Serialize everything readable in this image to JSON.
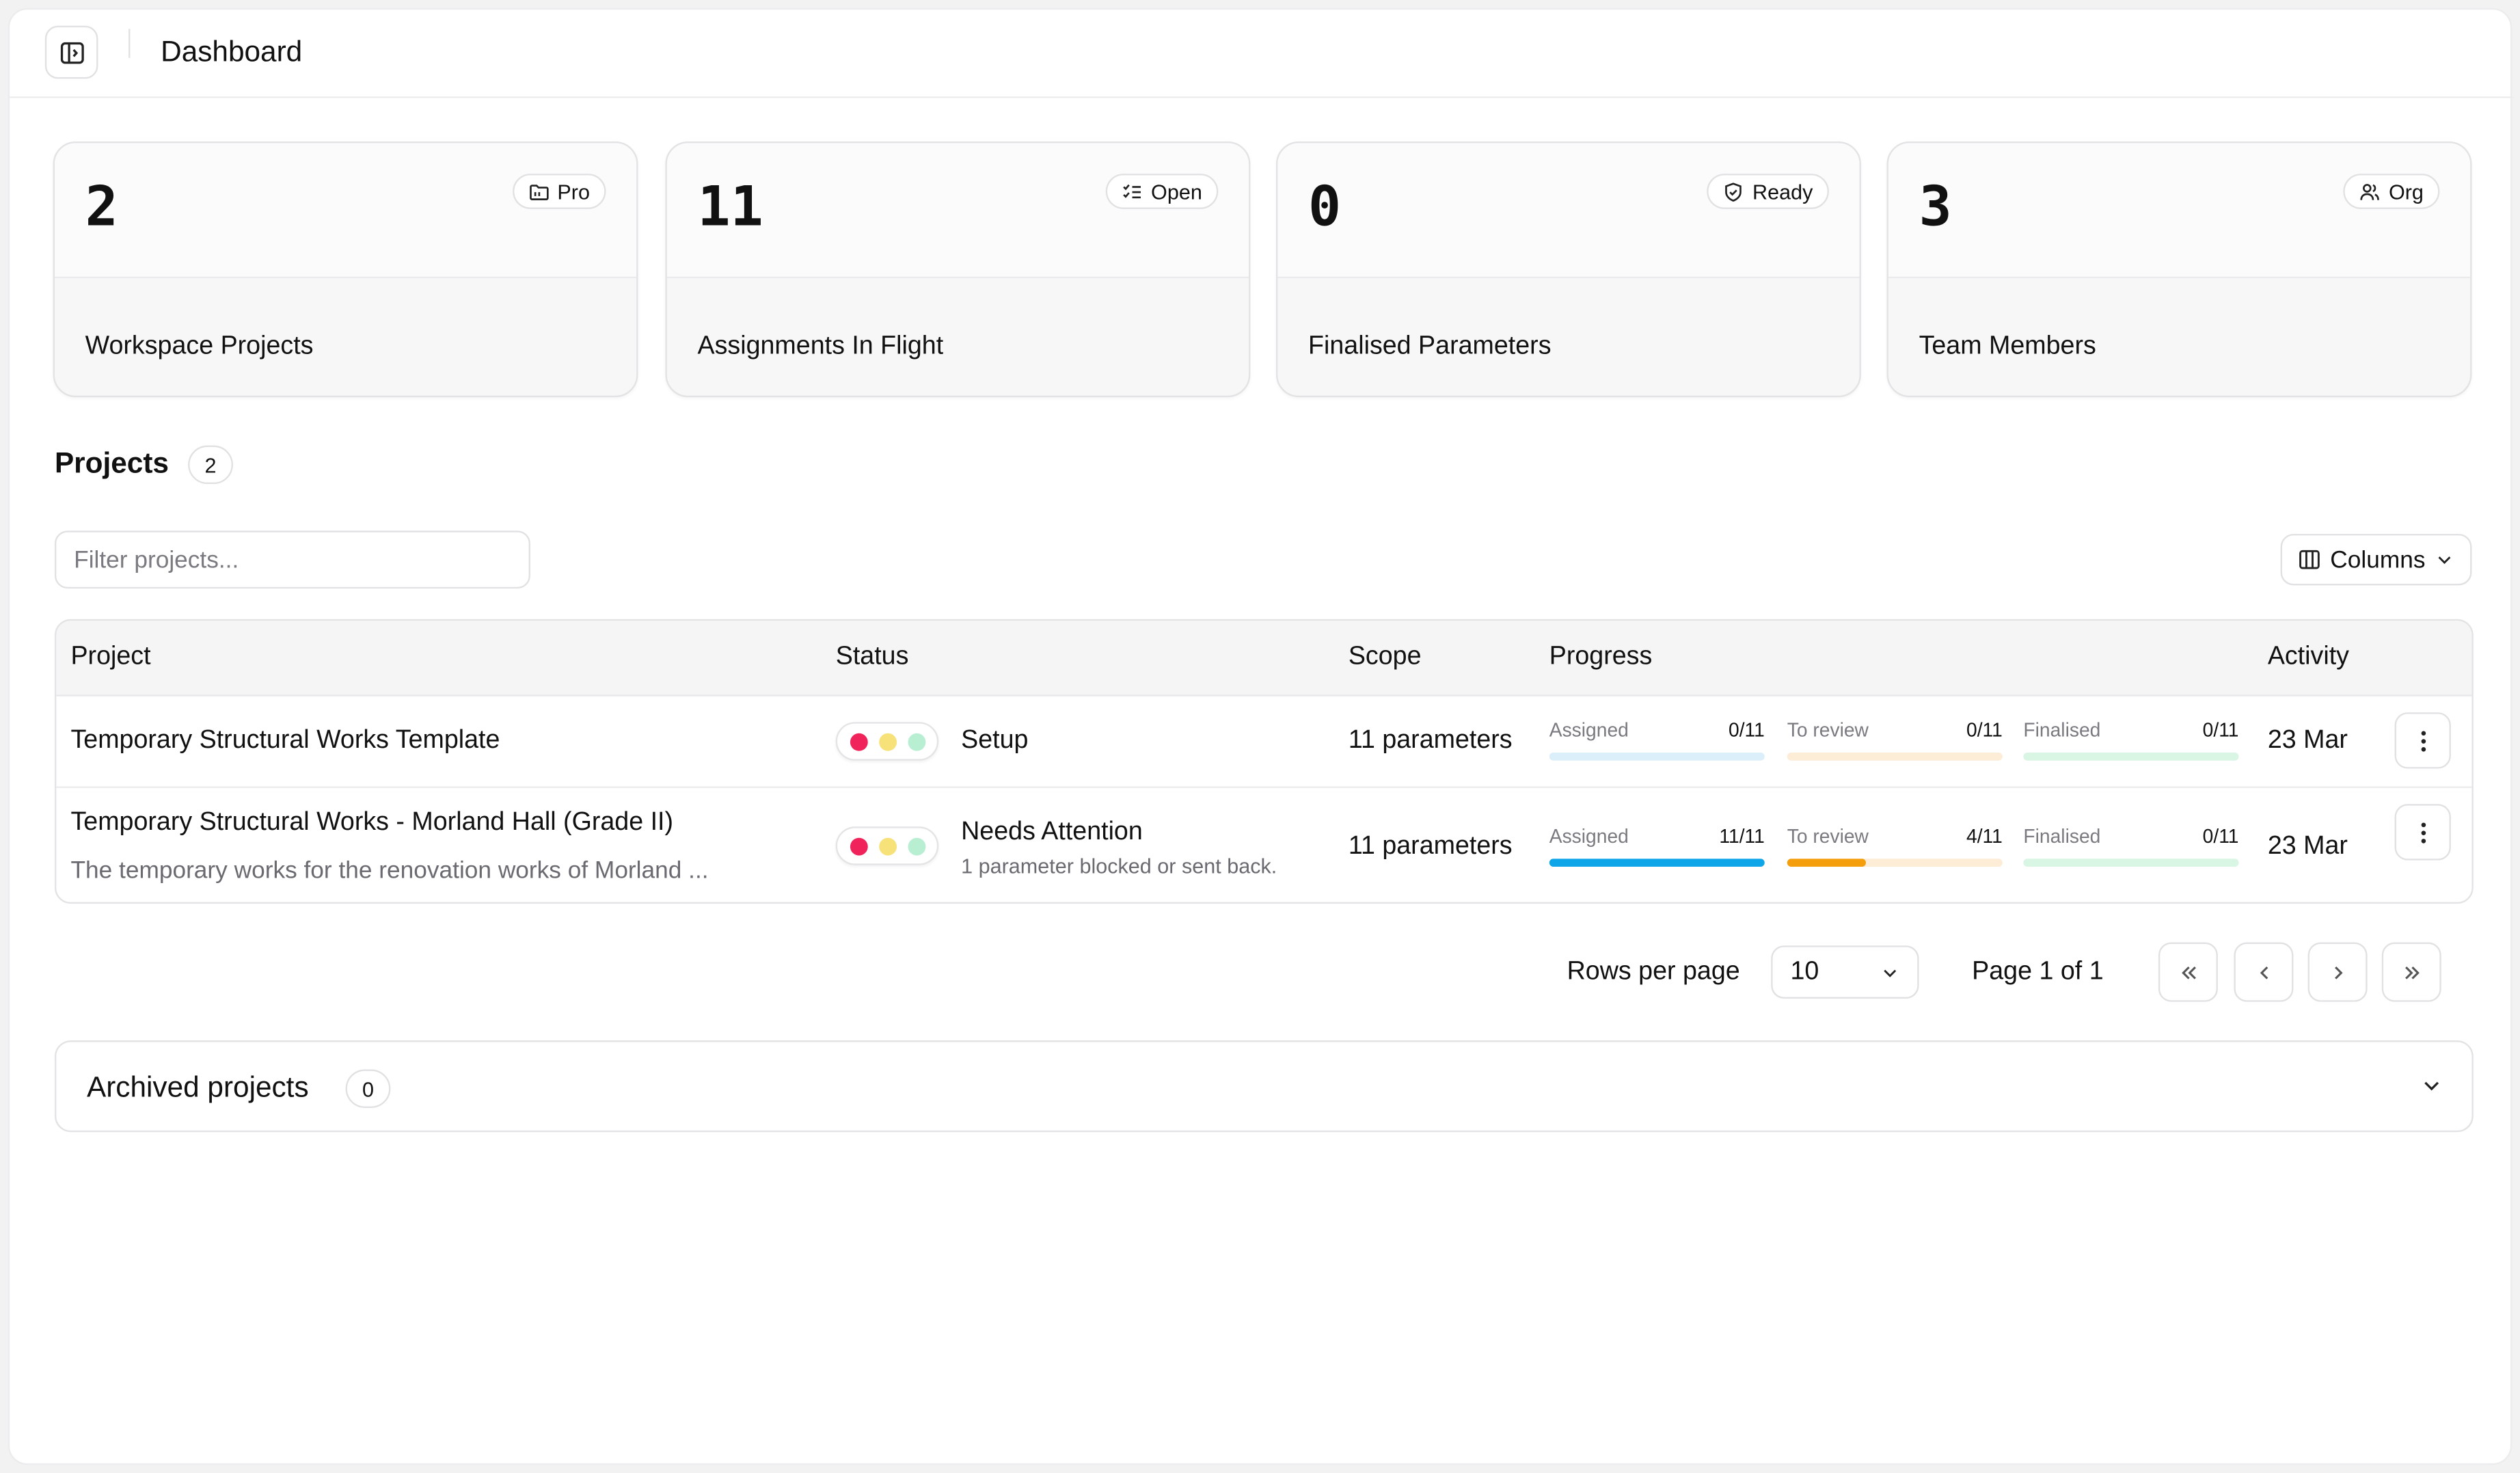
{
  "header": {
    "title": "Dashboard",
    "toggle_icon": "sidebar-toggle-icon"
  },
  "kpis": [
    {
      "value": "2",
      "label": "Workspace Projects",
      "badge": "Pro",
      "icon": "folder-icon"
    },
    {
      "value": "11",
      "label": "Assignments In Flight",
      "badge": "Open",
      "icon": "list-check-icon"
    },
    {
      "value": "0",
      "label": "Finalised Parameters",
      "badge": "Ready",
      "icon": "shield-check-icon"
    },
    {
      "value": "3",
      "label": "Team Members",
      "badge": "Org",
      "icon": "users-icon"
    }
  ],
  "projects": {
    "title": "Projects",
    "count": "2",
    "filter_placeholder": "Filter projects...",
    "columns_label": "Columns",
    "headers": {
      "project": "Project",
      "status": "Status",
      "scope": "Scope",
      "progress": "Progress",
      "activity": "Activity"
    },
    "rows": [
      {
        "name": "Temporary Structural Works Template",
        "description": "",
        "status": "Setup",
        "status_detail": "",
        "active_light": "red",
        "scope": "11 parameters",
        "progress": [
          {
            "label": "Assigned",
            "count": "0/11",
            "fraction": 0,
            "color": "#0ea5e9",
            "track": "#dbeffb"
          },
          {
            "label": "To review",
            "count": "0/11",
            "fraction": 0,
            "color": "#f59e0b",
            "track": "#fdecd6"
          },
          {
            "label": "Finalised",
            "count": "0/11",
            "fraction": 0,
            "color": "#22c55e",
            "track": "#d9f5e4"
          }
        ],
        "activity": "23 Mar"
      },
      {
        "name": "Temporary Structural Works - Morland Hall (Grade II)",
        "description": "The temporary works for the renovation works of Morland ...",
        "status": "Needs Attention",
        "status_detail": "1 parameter blocked or sent back.",
        "active_light": "red",
        "scope": "11 parameters",
        "progress": [
          {
            "label": "Assigned",
            "count": "11/11",
            "fraction": 1,
            "color": "#0ea5e9",
            "track": "#dbeffb"
          },
          {
            "label": "To review",
            "count": "4/11",
            "fraction": 0.3636,
            "color": "#f59e0b",
            "track": "#fdecd6"
          },
          {
            "label": "Finalised",
            "count": "0/11",
            "fraction": 0,
            "color": "#22c55e",
            "track": "#d9f5e4"
          }
        ],
        "activity": "23 Mar"
      }
    ]
  },
  "pagination": {
    "rows_per_page_label": "Rows per page",
    "rows_per_page_value": "10",
    "page_info": "Page 1 of 1"
  },
  "archived": {
    "title": "Archived projects",
    "count": "0"
  },
  "colors": {
    "red": "#f0245a",
    "yellow": "#f7e27a",
    "green": "#b8efd2"
  }
}
